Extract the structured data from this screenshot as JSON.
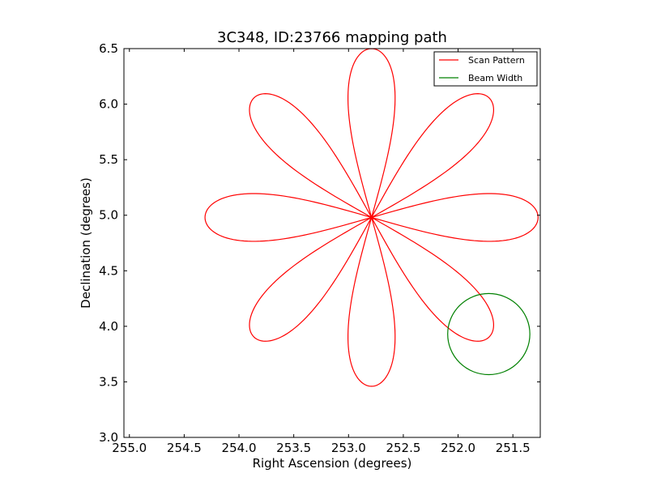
{
  "chart_data": {
    "type": "line",
    "title": "3C348, ID:23766 mapping path",
    "xlabel": "Right Ascension (degrees)",
    "ylabel": "Declination (degrees)",
    "xlim": [
      255.05,
      251.25
    ],
    "ylim": [
      3.0,
      6.5
    ],
    "x_inverted": true,
    "xticks": [
      255.0,
      254.5,
      254.0,
      253.5,
      253.0,
      252.5,
      252.0,
      251.5
    ],
    "xtick_labels": [
      "255.0",
      "254.5",
      "254.0",
      "253.5",
      "253.0",
      "252.5",
      "252.0",
      "251.5"
    ],
    "yticks": [
      3.0,
      3.5,
      4.0,
      4.5,
      5.0,
      5.5,
      6.0,
      6.5
    ],
    "ytick_labels": [
      "3.0",
      "3.5",
      "4.0",
      "4.5",
      "5.0",
      "5.5",
      "6.0",
      "6.5"
    ],
    "grid": false,
    "legend_position": "top-right",
    "series": [
      {
        "name": "Scan Pattern",
        "color": "#ff0000",
        "shape": "rose curve, 8 petals",
        "center_ra": 252.79,
        "center_dec": 4.98,
        "petal_reach": 1.52,
        "petal_half_width": 0.215,
        "start_ra": 254.23,
        "start_dec": 5.08,
        "end_ra": 254.28,
        "end_dec": 4.97
      },
      {
        "name": "Beam Width",
        "color": "#008000",
        "shape": "circle",
        "center_ra": 251.72,
        "center_dec": 3.93,
        "radius_ra": 0.375,
        "radius_dec": 0.365
      }
    ]
  }
}
